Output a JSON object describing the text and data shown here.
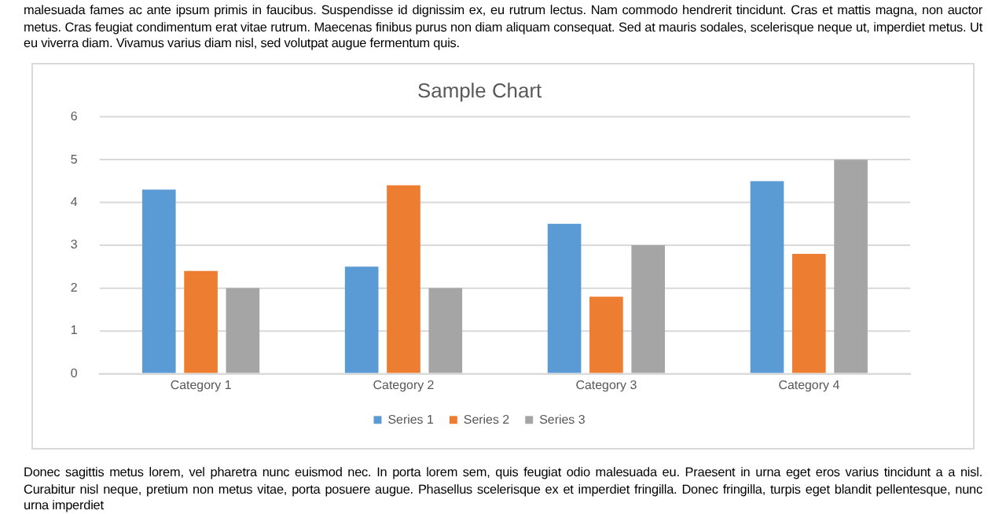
{
  "chart_data": {
    "type": "bar",
    "title": "Sample Chart",
    "categories": [
      "Category 1",
      "Category 2",
      "Category 3",
      "Category 4"
    ],
    "series": [
      {
        "name": "Series 1",
        "color": "#5b9bd5",
        "values": [
          4.3,
          2.5,
          3.5,
          4.5
        ]
      },
      {
        "name": "Series 2",
        "color": "#ed7d31",
        "values": [
          2.4,
          4.4,
          1.8,
          2.8
        ]
      },
      {
        "name": "Series 3",
        "color": "#a5a5a5",
        "values": [
          2,
          2,
          3,
          5
        ]
      }
    ],
    "ylim": [
      0,
      6
    ],
    "yticks": [
      0,
      1,
      2,
      3,
      4,
      5,
      6
    ],
    "grid": "y",
    "legend": "bottom",
    "annotations": [
      "malesuada fames ac ante ipsum primis in faucibus. Suspendisse id dignissim ex, eu rutrum lectus. Nam commodo hendrerit tincidunt. Cras et mattis magna, non auctor metus. Cras feugiat condimentum erat vitae rutrum. Maecenas finibus purus non diam aliquam consequat. Sed at mauris sodales, scelerisque neque ut, imperdiet metus. Ut eu viverra diam. Vivamus varius diam nisl, sed volutpat augue fermentum quis.",
      "Donec sagittis metus lorem, vel pharetra nunc euismod nec. In porta lorem sem, quis feugiat odio malesuada eu. Praesent in urna eget eros varius tincidunt a a nisl. Curabitur nisl neque, pretium non metus vitae, porta posuere augue. Phasellus scelerisque ex et imperdiet fringilla. Donec fringilla, turpis eget blandit pellentesque, nunc urna imperdiet"
    ]
  }
}
